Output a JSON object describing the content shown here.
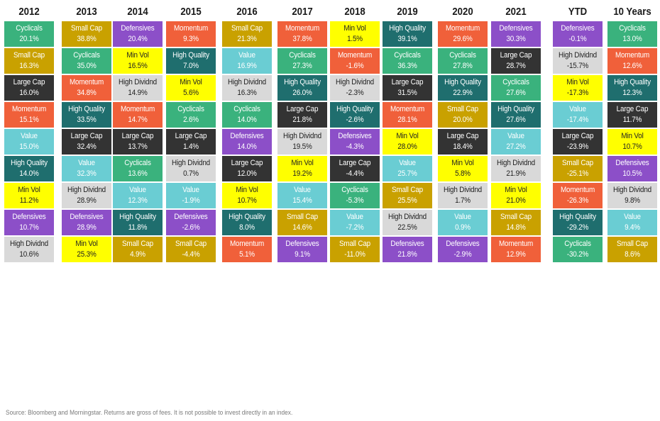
{
  "chart_data": {
    "type": "table",
    "title": "",
    "colors": {
      "Cyclicals": "#3ab27d",
      "Small Cap": "#c9a100",
      "Large Cap": "#333333",
      "Momentum": "#f0603a",
      "Value": "#6acdd3",
      "High Quality": "#1f6e6e",
      "Min Vol": "#ffff00",
      "Defensives": "#8c4fc8",
      "High Dividnd": "#d9d9d9"
    },
    "text_colors": {
      "Cyclicals": "#ffffff",
      "Small Cap": "#ffffff",
      "Large Cap": "#ffffff",
      "Momentum": "#ffffff",
      "Value": "#ffffff",
      "High Quality": "#ffffff",
      "Min Vol": "#222222",
      "Defensives": "#ffffff",
      "High Dividnd": "#222222"
    },
    "columns": [
      {
        "header": "2012",
        "cells": [
          {
            "factor": "Cyclicals",
            "value": "20.1%"
          },
          {
            "factor": "Small Cap",
            "value": "16.3%"
          },
          {
            "factor": "Large Cap",
            "value": "16.0%"
          },
          {
            "factor": "Momentum",
            "value": "15.1%"
          },
          {
            "factor": "Value",
            "value": "15.0%"
          },
          {
            "factor": "High Quality",
            "value": "14.0%"
          },
          {
            "factor": "Min Vol",
            "value": "11.2%"
          },
          {
            "factor": "Defensives",
            "value": "10.7%"
          },
          {
            "factor": "High Dividnd",
            "value": "10.6%"
          }
        ]
      },
      {
        "header": "2013",
        "cells": [
          {
            "factor": "Small Cap",
            "value": "38.8%"
          },
          {
            "factor": "Cyclicals",
            "value": "35.0%"
          },
          {
            "factor": "Momentum",
            "value": "34.8%"
          },
          {
            "factor": "High Quality",
            "value": "33.5%"
          },
          {
            "factor": "Large Cap",
            "value": "32.4%"
          },
          {
            "factor": "Value",
            "value": "32.3%"
          },
          {
            "factor": "High Dividnd",
            "value": "28.9%"
          },
          {
            "factor": "Defensives",
            "value": "28.9%"
          },
          {
            "factor": "Min Vol",
            "value": "25.3%"
          }
        ]
      },
      {
        "header": "2014",
        "cells": [
          {
            "factor": "Defensives",
            "value": "20.4%"
          },
          {
            "factor": "Min Vol",
            "value": "16.5%"
          },
          {
            "factor": "High Dividnd",
            "value": "14.9%"
          },
          {
            "factor": "Momentum",
            "value": "14.7%"
          },
          {
            "factor": "Large Cap",
            "value": "13.7%"
          },
          {
            "factor": "Cyclicals",
            "value": "13.6%"
          },
          {
            "factor": "Value",
            "value": "12.3%"
          },
          {
            "factor": "High Quality",
            "value": "11.8%"
          },
          {
            "factor": "Small Cap",
            "value": "4.9%"
          }
        ]
      },
      {
        "header": "2015",
        "cells": [
          {
            "factor": "Momentum",
            "value": "9.3%"
          },
          {
            "factor": "High Quality",
            "value": "7.0%"
          },
          {
            "factor": "Min Vol",
            "value": "5.6%"
          },
          {
            "factor": "Cyclicals",
            "value": "2.6%"
          },
          {
            "factor": "Large Cap",
            "value": "1.4%"
          },
          {
            "factor": "High Dividnd",
            "value": "0.7%"
          },
          {
            "factor": "Value",
            "value": "-1.9%"
          },
          {
            "factor": "Defensives",
            "value": "-2.6%"
          },
          {
            "factor": "Small Cap",
            "value": "-4.4%"
          }
        ]
      },
      {
        "header": "2016",
        "cells": [
          {
            "factor": "Small Cap",
            "value": "21.3%"
          },
          {
            "factor": "Value",
            "value": "16.9%"
          },
          {
            "factor": "High Dividnd",
            "value": "16.3%"
          },
          {
            "factor": "Cyclicals",
            "value": "14.0%"
          },
          {
            "factor": "Defensives",
            "value": "14.0%"
          },
          {
            "factor": "Large Cap",
            "value": "12.0%"
          },
          {
            "factor": "Min Vol",
            "value": "10.7%"
          },
          {
            "factor": "High Quality",
            "value": "8.0%"
          },
          {
            "factor": "Momentum",
            "value": "5.1%"
          }
        ]
      },
      {
        "header": "2017",
        "cells": [
          {
            "factor": "Momentum",
            "value": "37.8%"
          },
          {
            "factor": "Cyclicals",
            "value": "27.3%"
          },
          {
            "factor": "High Quality",
            "value": "26.0%"
          },
          {
            "factor": "Large Cap",
            "value": "21.8%"
          },
          {
            "factor": "High Dividnd",
            "value": "19.5%"
          },
          {
            "factor": "Min Vol",
            "value": "19.2%"
          },
          {
            "factor": "Value",
            "value": "15.4%"
          },
          {
            "factor": "Small Cap",
            "value": "14.6%"
          },
          {
            "factor": "Defensives",
            "value": "9.1%"
          }
        ]
      },
      {
        "header": "2018",
        "cells": [
          {
            "factor": "Min Vol",
            "value": "1.5%"
          },
          {
            "factor": "Momentum",
            "value": "-1.6%"
          },
          {
            "factor": "High Dividnd",
            "value": "-2.3%"
          },
          {
            "factor": "High Quality",
            "value": "-2.6%"
          },
          {
            "factor": "Defensives",
            "value": "-4.3%"
          },
          {
            "factor": "Large Cap",
            "value": "-4.4%"
          },
          {
            "factor": "Cyclicals",
            "value": "-5.3%"
          },
          {
            "factor": "Value",
            "value": "-7.2%"
          },
          {
            "factor": "Small Cap",
            "value": "-11.0%"
          }
        ]
      },
      {
        "header": "2019",
        "cells": [
          {
            "factor": "High Quality",
            "value": "39.1%"
          },
          {
            "factor": "Cyclicals",
            "value": "36.3%"
          },
          {
            "factor": "Large Cap",
            "value": "31.5%"
          },
          {
            "factor": "Momentum",
            "value": "28.1%"
          },
          {
            "factor": "Min Vol",
            "value": "28.0%"
          },
          {
            "factor": "Value",
            "value": "25.7%"
          },
          {
            "factor": "Small Cap",
            "value": "25.5%"
          },
          {
            "factor": "High Dividnd",
            "value": "22.5%"
          },
          {
            "factor": "Defensives",
            "value": "21.8%"
          }
        ]
      },
      {
        "header": "2020",
        "cells": [
          {
            "factor": "Momentum",
            "value": "29.6%"
          },
          {
            "factor": "Cyclicals",
            "value": "27.8%"
          },
          {
            "factor": "High Quality",
            "value": "22.9%"
          },
          {
            "factor": "Small Cap",
            "value": "20.0%"
          },
          {
            "factor": "Large Cap",
            "value": "18.4%"
          },
          {
            "factor": "Min Vol",
            "value": "5.8%"
          },
          {
            "factor": "High Dividnd",
            "value": "1.7%"
          },
          {
            "factor": "Value",
            "value": "0.9%"
          },
          {
            "factor": "Defensives",
            "value": "-2.9%"
          }
        ]
      },
      {
        "header": "2021",
        "cells": [
          {
            "factor": "Defensives",
            "value": "30.3%"
          },
          {
            "factor": "Large Cap",
            "value": "28.7%"
          },
          {
            "factor": "Cyclicals",
            "value": "27.6%"
          },
          {
            "factor": "High Quality",
            "value": "27.6%"
          },
          {
            "factor": "Value",
            "value": "27.2%"
          },
          {
            "factor": "High Dividnd",
            "value": "21.9%"
          },
          {
            "factor": "Min Vol",
            "value": "21.0%"
          },
          {
            "factor": "Small Cap",
            "value": "14.8%"
          },
          {
            "factor": "Momentum",
            "value": "12.9%"
          }
        ]
      },
      {
        "header": "YTD",
        "cells": [
          {
            "factor": "Defensives",
            "value": "-0.1%"
          },
          {
            "factor": "High Dividnd",
            "value": "-15.7%"
          },
          {
            "factor": "Min Vol",
            "value": "-17.3%"
          },
          {
            "factor": "Value",
            "value": "-17.4%"
          },
          {
            "factor": "Large Cap",
            "value": "-23.9%"
          },
          {
            "factor": "Small Cap",
            "value": "-25.1%"
          },
          {
            "factor": "Momentum",
            "value": "-26.3%"
          },
          {
            "factor": "High Quality",
            "value": "-29.2%"
          },
          {
            "factor": "Cyclicals",
            "value": "-30.2%"
          }
        ]
      },
      {
        "header": "10 Years",
        "cells": [
          {
            "factor": "Cyclicals",
            "value": "13.0%"
          },
          {
            "factor": "Momentum",
            "value": "12.6%"
          },
          {
            "factor": "High Quality",
            "value": "12.3%"
          },
          {
            "factor": "Large Cap",
            "value": "11.7%"
          },
          {
            "factor": "Min Vol",
            "value": "10.7%"
          },
          {
            "factor": "Defensives",
            "value": "10.5%"
          },
          {
            "factor": "High Dividnd",
            "value": "9.8%"
          },
          {
            "factor": "Value",
            "value": "9.4%"
          },
          {
            "factor": "Small Cap",
            "value": "8.6%"
          }
        ]
      }
    ]
  },
  "footer": {
    "source": "Source: Bloomberg and Morningstar. Returns are gross of fees. It is not possible to invest directly in an index."
  }
}
